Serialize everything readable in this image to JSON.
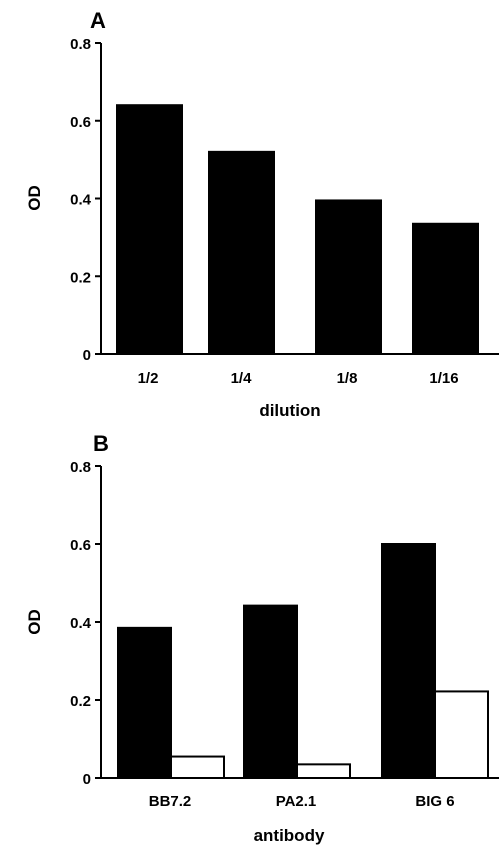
{
  "chart_data": [
    {
      "type": "bar",
      "panel": "A",
      "categories": [
        "1/2",
        "1/4",
        "1/8",
        "1/16"
      ],
      "series": [
        {
          "values": [
            0.64,
            0.52,
            0.395,
            0.335
          ],
          "color": "#000000"
        }
      ],
      "xlabel": "dilution",
      "ylabel": "OD",
      "ylim": [
        0,
        0.8
      ],
      "yticks": [
        "0",
        "0.2",
        "0.4",
        "0.6",
        "0.8"
      ],
      "grid": false,
      "legend": "none"
    },
    {
      "type": "bar",
      "panel": "B",
      "categories": [
        "BB7.2",
        "PA2.1",
        "BIG 6"
      ],
      "series": [
        {
          "values": [
            0.385,
            0.442,
            0.6
          ],
          "color": "#000000"
        },
        {
          "values": [
            0.055,
            0.035,
            0.222
          ],
          "color": "#ffffff"
        }
      ],
      "xlabel": "antibody",
      "ylabel": "OD",
      "ylim": [
        0,
        0.8
      ],
      "yticks": [
        "0",
        "0.2",
        "0.4",
        "0.6",
        "0.8"
      ],
      "grid": false,
      "legend": "none"
    }
  ]
}
